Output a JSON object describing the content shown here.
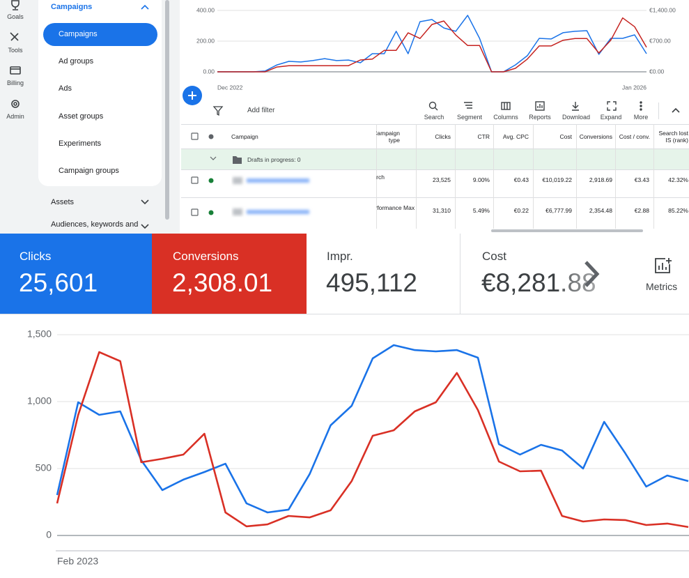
{
  "nav": [
    "Goals",
    "Tools",
    "Billing",
    "Admin"
  ],
  "sidebar": {
    "header": "Campaigns",
    "selected": "Campaigns",
    "items": [
      "Ad groups",
      "Ads",
      "Asset groups",
      "Experiments",
      "Campaign groups"
    ],
    "sections": [
      "Assets",
      "Audiences, keywords and"
    ]
  },
  "toolbar": {
    "filter": "Add filter",
    "tools": [
      "Search",
      "Segment",
      "Columns",
      "Reports",
      "Download",
      "Expand",
      "More"
    ]
  },
  "table": {
    "headers": [
      "Campaign",
      "Campaign type",
      "Clicks",
      "CTR",
      "Avg. CPC",
      "Cost",
      "Conversions",
      "Cost / conv.",
      "Search lost IS (rank)"
    ],
    "drafts": "Drafts in progress: 0",
    "rows": [
      [
        "Search",
        "23,525",
        "9.00%",
        "€0.43",
        "€10,019.22",
        "2,918.69",
        "€3.43",
        "42.32%"
      ],
      [
        "Performance Max",
        "31,310",
        "5.49%",
        "€0.22",
        "€6,777.99",
        "2,354.48",
        "€2.88",
        "85.22%"
      ]
    ]
  },
  "scorecards": [
    {
      "label": "Clicks",
      "value": "25,601"
    },
    {
      "label": "Conversions",
      "value": "2,308.01"
    },
    {
      "label": "Impr.",
      "value": "495,112"
    },
    {
      "label": "Cost",
      "value": "€8,281.88"
    }
  ],
  "metrics": "Metrics",
  "chart_data": [
    {
      "type": "line",
      "grid": true,
      "categories": [
        "Dec 2022",
        null,
        null,
        null,
        null,
        null,
        null,
        null,
        null,
        null,
        null,
        null,
        null,
        null,
        null,
        null,
        null,
        null,
        null,
        null,
        null,
        null,
        null,
        null,
        null,
        null,
        null,
        null,
        null,
        null,
        null,
        null,
        null,
        null,
        null,
        null,
        "Jan 2026"
      ],
      "ylim": [
        0,
        400
      ],
      "yticks": [
        {
          "value": 0,
          "label": "0.00"
        },
        {
          "value": 200,
          "label": "200.00"
        },
        {
          "value": 400,
          "label": "400.00"
        }
      ],
      "y2lim": [
        0,
        1400
      ],
      "y2ticks": [
        {
          "value": 0,
          "label": "€0.00"
        },
        {
          "value": 700,
          "label": "€700.00"
        },
        {
          "value": 1400,
          "label": "€1,400.00"
        }
      ],
      "series": [
        {
          "color": "#1a73e8",
          "values": [
            0,
            0,
            0,
            0,
            5,
            45,
            68,
            64,
            73,
            86,
            73,
            77,
            59,
            118,
            118,
            264,
            118,
            327,
            341,
            286,
            264,
            368,
            218,
            0,
            0,
            45,
            105,
            218,
            214,
            255,
            264,
            268,
            114,
            218,
            218,
            241,
            118
          ]
        },
        {
          "color": "#c5221f",
          "axis": "y2",
          "values": [
            0,
            0,
            0,
            0,
            0,
            110,
            140,
            140,
            140,
            140,
            140,
            140,
            270,
            290,
            490,
            490,
            890,
            760,
            1080,
            1160,
            840,
            600,
            600,
            0,
            0,
            80,
            290,
            590,
            590,
            720,
            760,
            760,
            430,
            720,
            1230,
            1030,
            560
          ]
        }
      ]
    },
    {
      "type": "line",
      "grid": true,
      "categories": [
        "Feb 2023",
        null,
        null,
        null,
        null,
        null,
        null,
        null,
        null,
        null,
        null,
        null,
        null,
        null,
        null,
        null,
        null,
        null,
        null,
        null,
        null,
        null,
        null,
        null,
        null,
        null,
        null,
        null,
        null,
        null,
        null
      ],
      "ylim": [
        0,
        1500
      ],
      "yticks": [
        0,
        500,
        {
          "value": 1000,
          "label": "1,000"
        },
        {
          "value": 1500,
          "label": "1,500"
        }
      ],
      "series": [
        {
          "color": "#1a73e8",
          "values": [
            302,
            995,
            901,
            927,
            562,
            339,
            417,
            474,
            536,
            240,
            172,
            193,
            458,
            823,
            969,
            1323,
            1422,
            1385,
            1375,
            1385,
            1328,
            682,
            604,
            677,
            635,
            500,
            849,
            615,
            365,
            448,
            406
          ]
        },
        {
          "color": "#d93025",
          "values": [
            240,
            900,
            1370,
            1302,
            547,
            573,
            604,
            760,
            172,
            68,
            83,
            146,
            135,
            188,
            406,
            745,
            786,
            927,
            995,
            1214,
            937,
            552,
            479,
            484,
            146,
            104,
            120,
            115,
            78,
            89,
            63
          ]
        }
      ]
    }
  ]
}
